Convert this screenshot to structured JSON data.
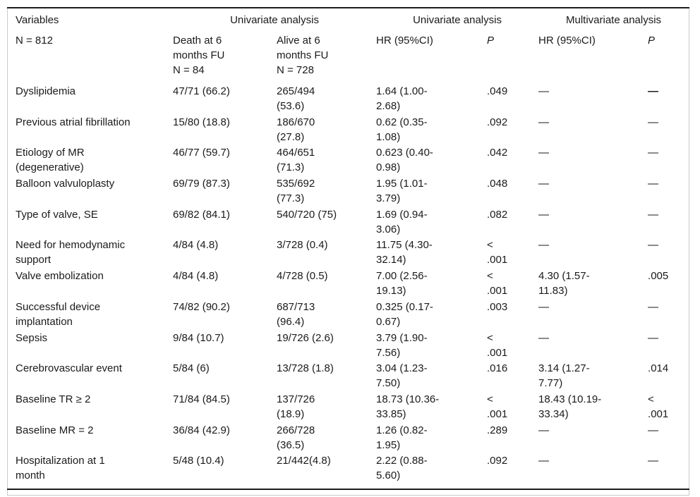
{
  "table": {
    "top_headers": [
      {
        "label": "Variables"
      },
      {
        "label": "Univariate analysis"
      },
      {
        "label": "Univariate analysis"
      },
      {
        "label": "Multivariate analysis"
      }
    ],
    "sub_headers": [
      "N = 812",
      "Death at 6\nmonths FU\nN = 84",
      "Alive at 6\nmonths FU\nN = 728",
      "HR (95%CI)",
      "P",
      "HR (95%CI)",
      "P"
    ],
    "rows": [
      [
        "Dyslipidemia",
        "47/71 (66.2)",
        "265/494\n(53.6)",
        "1.64 (1.00-\n2.68)",
        ".049",
        "—",
        {
          "text": "—",
          "bold": true
        }
      ],
      [
        "Previous atrial fibrillation",
        "15/80 (18.8)",
        "186/670\n(27.8)",
        "0.62 (0.35-\n1.08)",
        ".092",
        "—",
        "—"
      ],
      [
        "Etiology of MR\n(degenerative)",
        "46/77 (59.7)",
        "464/651\n(71.3)",
        "0.623 (0.40-\n0.98)",
        ".042",
        "—",
        "—"
      ],
      [
        "Balloon valvuloplasty",
        "69/79 (87.3)",
        "535/692\n(77.3)",
        "1.95 (1.01-\n3.79)",
        ".048",
        "—",
        "—"
      ],
      [
        "Type of valve, SE",
        "69/82 (84.1)",
        "540/720 (75)",
        "1.69 (0.94-\n3.06)",
        ".082",
        "—",
        "—"
      ],
      [
        "Need for hemodynamic\nsupport",
        "4/84 (4.8)",
        "3/728 (0.4)",
        "11.75 (4.30-\n32.14)",
        "<\n.001",
        "—",
        "—"
      ],
      [
        "Valve embolization",
        "4/84 (4.8)",
        "4/728 (0.5)",
        "7.00 (2.56-\n19.13)",
        "<\n.001",
        "4.30 (1.57-\n11.83)",
        ".005"
      ],
      [
        "Successful device\nimplantation",
        "74/82 (90.2)",
        "687/713\n(96.4)",
        "0.325 (0.17-\n0.67)",
        ".003",
        "—",
        "—"
      ],
      [
        "Sepsis",
        "9/84 (10.7)",
        "19/726 (2.6)",
        "3.79 (1.90-\n7.56)",
        "<\n.001",
        "—",
        "—"
      ],
      [
        "Cerebrovascular event",
        "5/84 (6)",
        "13/728 (1.8)",
        "3.04 (1.23-\n7.50)",
        ".016",
        "3.14 (1.27-\n7.77)",
        ".014"
      ],
      [
        "Baseline TR ≥ 2",
        "71/84 (84.5)",
        "137/726\n(18.9)",
        "18.73 (10.36-\n33.85)",
        "<\n.001",
        "18.43 (10.19-\n33.34)",
        "<\n.001"
      ],
      [
        "Baseline MR = 2",
        "36/84 (42.9)",
        "266/728\n(36.5)",
        "1.26 (0.82-\n1.95)",
        ".289",
        "—",
        "—"
      ],
      [
        "Hospitalization at 1\nmonth",
        "5/48 (10.4)",
        "21/442(4.8)",
        "2.22 (0.88-\n5.60)",
        ".092",
        "—",
        "—"
      ]
    ],
    "colors": {
      "text": "#1a1a1a",
      "rule": "#1c1c1c",
      "outer_border": "#c9c9c9",
      "background": "#ffffff"
    }
  }
}
